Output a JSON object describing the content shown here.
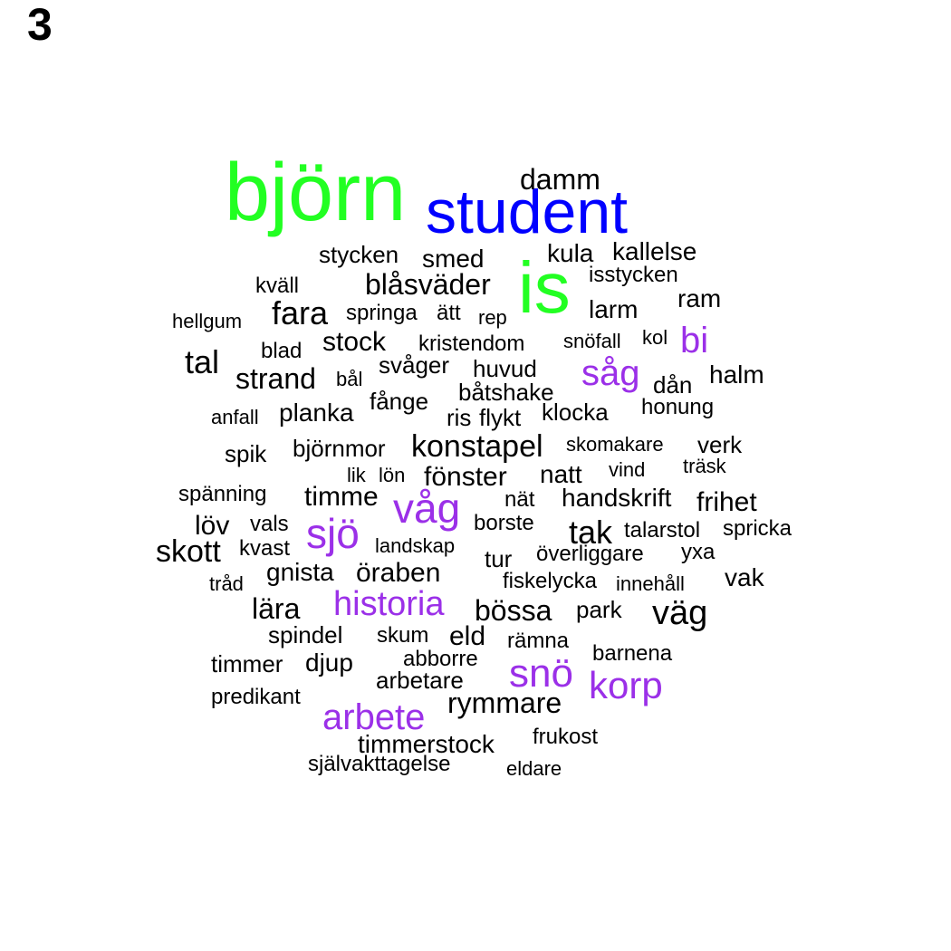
{
  "panel_label": "3",
  "colors": {
    "black": "#000000",
    "green": "#22ff22",
    "blue": "#0000ff",
    "purple": "#9b30e8"
  },
  "words": [
    {
      "text": "björn",
      "color": "green"
    },
    {
      "text": "student",
      "color": "blue"
    },
    {
      "text": "is",
      "color": "green"
    },
    {
      "text": "damm",
      "color": "black"
    },
    {
      "text": "stycken",
      "color": "black"
    },
    {
      "text": "smed",
      "color": "black"
    },
    {
      "text": "kula",
      "color": "black"
    },
    {
      "text": "kallelse",
      "color": "black"
    },
    {
      "text": "isstycken",
      "color": "black"
    },
    {
      "text": "kväll",
      "color": "black"
    },
    {
      "text": "blåsväder",
      "color": "black"
    },
    {
      "text": "ram",
      "color": "black"
    },
    {
      "text": "fara",
      "color": "black"
    },
    {
      "text": "hellgum",
      "color": "black"
    },
    {
      "text": "springa",
      "color": "black"
    },
    {
      "text": "ätt",
      "color": "black"
    },
    {
      "text": "rep",
      "color": "black"
    },
    {
      "text": "larm",
      "color": "black"
    },
    {
      "text": "bi",
      "color": "purple"
    },
    {
      "text": "stock",
      "color": "black"
    },
    {
      "text": "kristendom",
      "color": "black"
    },
    {
      "text": "snöfall",
      "color": "black"
    },
    {
      "text": "kol",
      "color": "black"
    },
    {
      "text": "blad",
      "color": "black"
    },
    {
      "text": "tal",
      "color": "black"
    },
    {
      "text": "svåger",
      "color": "black"
    },
    {
      "text": "huvud",
      "color": "black"
    },
    {
      "text": "såg",
      "color": "purple"
    },
    {
      "text": "halm",
      "color": "black"
    },
    {
      "text": "strand",
      "color": "black"
    },
    {
      "text": "bål",
      "color": "black"
    },
    {
      "text": "båtshake",
      "color": "black"
    },
    {
      "text": "dån",
      "color": "black"
    },
    {
      "text": "fånge",
      "color": "black"
    },
    {
      "text": "honung",
      "color": "black"
    },
    {
      "text": "anfall",
      "color": "black"
    },
    {
      "text": "planka",
      "color": "black"
    },
    {
      "text": "ris",
      "color": "black"
    },
    {
      "text": "flykt",
      "color": "black"
    },
    {
      "text": "klocka",
      "color": "black"
    },
    {
      "text": "spik",
      "color": "black"
    },
    {
      "text": "björnmor",
      "color": "black"
    },
    {
      "text": "konstapel",
      "color": "black"
    },
    {
      "text": "skomakare",
      "color": "black"
    },
    {
      "text": "verk",
      "color": "black"
    },
    {
      "text": "lik",
      "color": "black"
    },
    {
      "text": "lön",
      "color": "black"
    },
    {
      "text": "fönster",
      "color": "black"
    },
    {
      "text": "natt",
      "color": "black"
    },
    {
      "text": "vind",
      "color": "black"
    },
    {
      "text": "träsk",
      "color": "black"
    },
    {
      "text": "spänning",
      "color": "black"
    },
    {
      "text": "timme",
      "color": "black"
    },
    {
      "text": "våg",
      "color": "purple"
    },
    {
      "text": "nät",
      "color": "black"
    },
    {
      "text": "handskrift",
      "color": "black"
    },
    {
      "text": "frihet",
      "color": "black"
    },
    {
      "text": "löv",
      "color": "black"
    },
    {
      "text": "vals",
      "color": "black"
    },
    {
      "text": "sjö",
      "color": "purple"
    },
    {
      "text": "borste",
      "color": "black"
    },
    {
      "text": "tak",
      "color": "black"
    },
    {
      "text": "talarstol",
      "color": "black"
    },
    {
      "text": "spricka",
      "color": "black"
    },
    {
      "text": "skott",
      "color": "black"
    },
    {
      "text": "kvast",
      "color": "black"
    },
    {
      "text": "landskap",
      "color": "black"
    },
    {
      "text": "tur",
      "color": "black"
    },
    {
      "text": "överliggare",
      "color": "black"
    },
    {
      "text": "yxa",
      "color": "black"
    },
    {
      "text": "gnista",
      "color": "black"
    },
    {
      "text": "öraben",
      "color": "black"
    },
    {
      "text": "vak",
      "color": "black"
    },
    {
      "text": "tråd",
      "color": "black"
    },
    {
      "text": "fiskelycka",
      "color": "black"
    },
    {
      "text": "innehåll",
      "color": "black"
    },
    {
      "text": "lära",
      "color": "black"
    },
    {
      "text": "historia",
      "color": "purple"
    },
    {
      "text": "bössa",
      "color": "black"
    },
    {
      "text": "park",
      "color": "black"
    },
    {
      "text": "väg",
      "color": "black"
    },
    {
      "text": "spindel",
      "color": "black"
    },
    {
      "text": "skum",
      "color": "black"
    },
    {
      "text": "eld",
      "color": "black"
    },
    {
      "text": "rämna",
      "color": "black"
    },
    {
      "text": "barnena",
      "color": "black"
    },
    {
      "text": "timmer",
      "color": "black"
    },
    {
      "text": "djup",
      "color": "black"
    },
    {
      "text": "abborre",
      "color": "black"
    },
    {
      "text": "snö",
      "color": "purple"
    },
    {
      "text": "arbetare",
      "color": "black"
    },
    {
      "text": "korp",
      "color": "purple"
    },
    {
      "text": "predikant",
      "color": "black"
    },
    {
      "text": "rymmare",
      "color": "black"
    },
    {
      "text": "arbete",
      "color": "purple"
    },
    {
      "text": "frukost",
      "color": "black"
    },
    {
      "text": "timmerstock",
      "color": "black"
    },
    {
      "text": "självakttagelse",
      "color": "black"
    },
    {
      "text": "eldare",
      "color": "black"
    }
  ]
}
